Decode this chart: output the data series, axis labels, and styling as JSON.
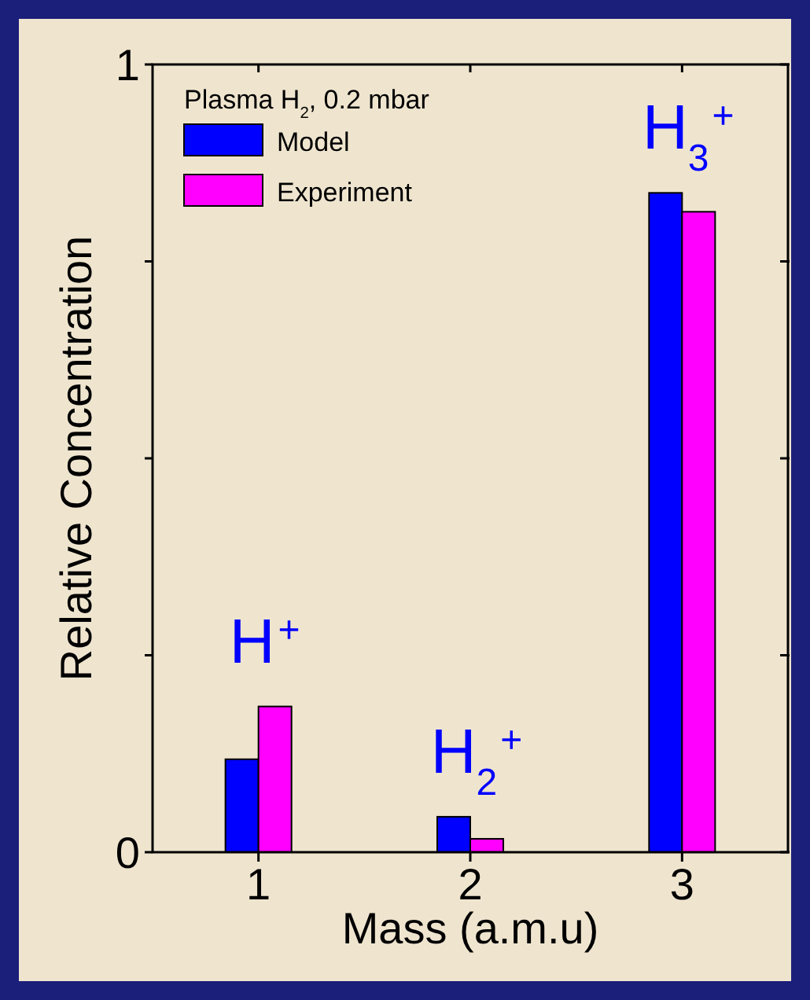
{
  "chart_data": {
    "type": "bar",
    "xlabel": "Mass (a.m.u)",
    "ylabel": "Relative Concentration",
    "legend_title": "Plasma H$_{2}$, 0.2 mbar",
    "legend": "top left",
    "x": [
      1,
      2,
      3
    ],
    "xlim": [
      0.5,
      3.5
    ],
    "xticks": [
      1,
      2,
      3
    ],
    "ylim": [
      0,
      1
    ],
    "yticks": [
      0,
      {
        "value": 0.25,
        "label": null
      },
      {
        "value": 0.5,
        "label": null
      },
      {
        "value": 0.75,
        "label": null
      },
      1
    ],
    "series": [
      {
        "name": "Model",
        "color": "#0000ff",
        "values": [
          0.118,
          0.045,
          0.837
        ]
      },
      {
        "name": "Experiment",
        "color": "#ff00ff",
        "values": [
          0.185,
          0.017,
          0.813
        ]
      }
    ],
    "annotations": [
      "H$^{+}$",
      "H$_{2}$$^{+}$",
      "H$_{3}$$^{+}$"
    ]
  }
}
